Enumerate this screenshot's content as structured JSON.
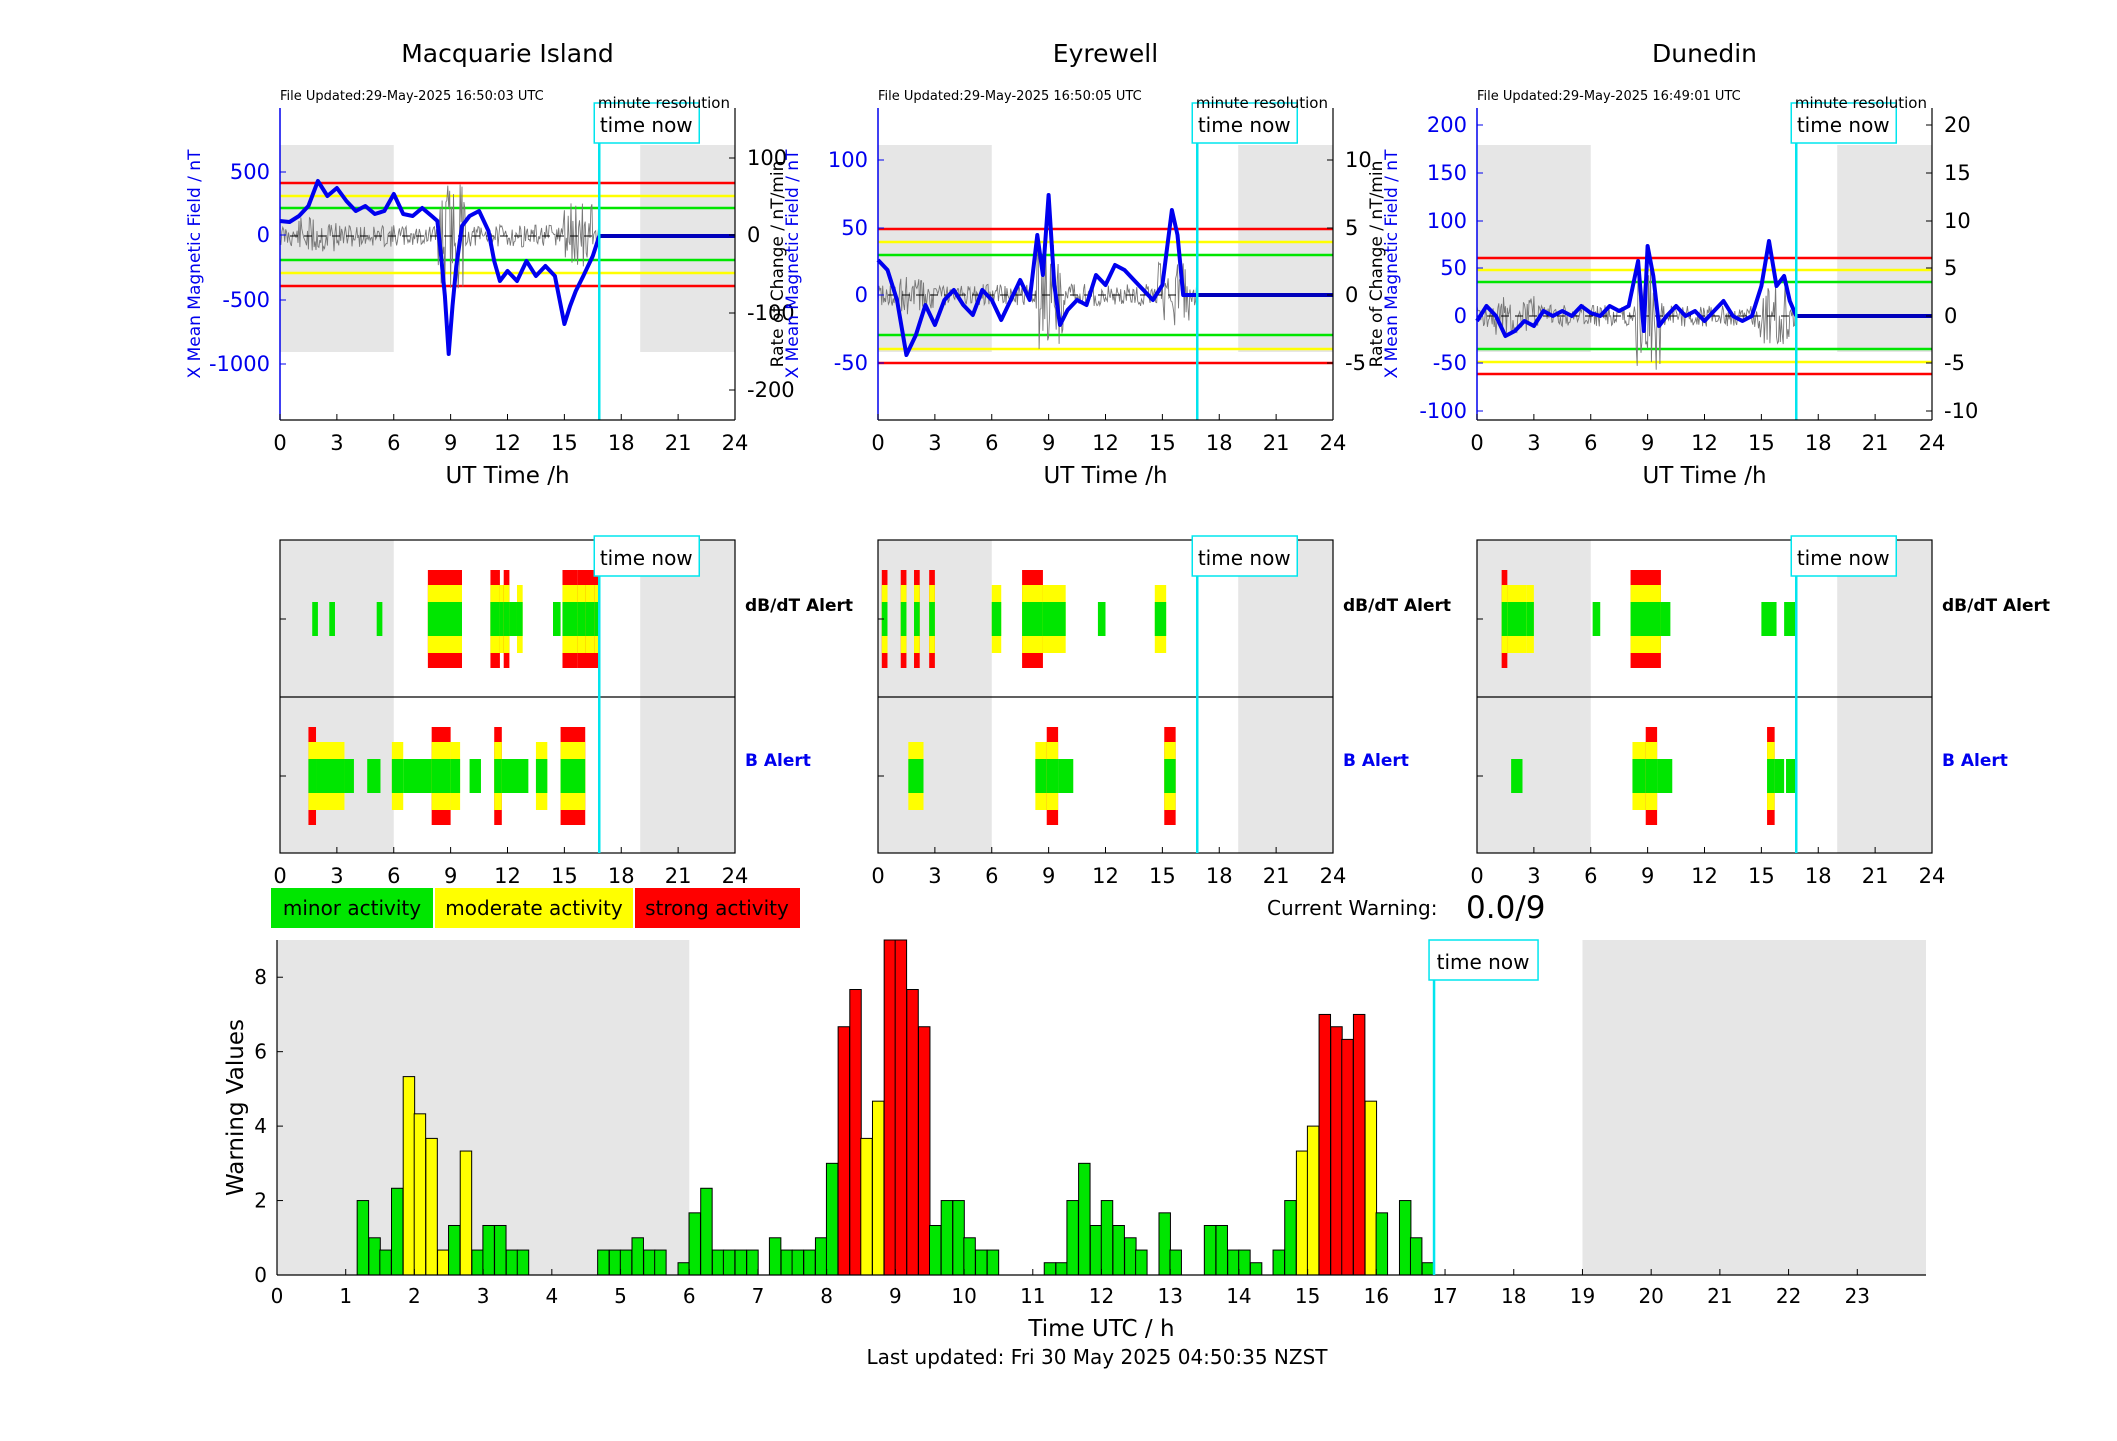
{
  "colors": {
    "minor": "#00e600",
    "moderate": "#ffff00",
    "strong": "#ff0000",
    "field": "#0000ee",
    "time_now": "#00e5ee",
    "night": "#e6e6e6"
  },
  "stations": [
    {
      "name": "Macquarie Island",
      "file_updated": "File Updated:29-May-2025 16:50:03 UTC",
      "resolution": "minute resolution",
      "left_axis_label": "X Mean Magnetic Field / nT",
      "right_axis_label": "",
      "x_label": "UT Time /h",
      "left_ticks": [
        "500",
        "0",
        "-500",
        "-1000"
      ],
      "right_ticks": [
        "100",
        "0",
        "-100",
        "-200"
      ]
    },
    {
      "name": "Eyrewell",
      "file_updated": "File Updated:29-May-2025 16:50:05 UTC",
      "resolution": "minute resolution",
      "left_axis_label": "X Mean Magnetic Field / nT",
      "right_axis_label": "Rate of Change / nT/min",
      "x_label": "UT Time /h",
      "left_ticks": [
        "100",
        "50",
        "0",
        "-50"
      ],
      "right_ticks": [
        "10",
        "5",
        "0",
        "-5"
      ]
    },
    {
      "name": "Dunedin",
      "file_updated": "File Updated:29-May-2025 16:49:01 UTC",
      "resolution": "minute resolution",
      "left_axis_label": "X Mean Magnetic Field / nT",
      "right_axis_label": "Rate of Change / nT/min",
      "x_label": "UT Time /h",
      "left_ticks": [
        "200",
        "150",
        "100",
        "50",
        "0",
        "-50",
        "-100"
      ],
      "right_ticks": [
        "20",
        "15",
        "10",
        "5",
        "0",
        "-5",
        "-10"
      ]
    }
  ],
  "time_now_label": "time now",
  "alerts": {
    "dbdt_label": "dB/dT Alert",
    "b_label": "B Alert"
  },
  "hour_ticks": [
    "0",
    "3",
    "6",
    "9",
    "12",
    "15",
    "18",
    "21",
    "24"
  ],
  "legend": {
    "minor": "minor activity",
    "moderate": "moderate activity",
    "strong": "strong activity"
  },
  "current_warning": {
    "label": "Current Warning:",
    "value": "0.0/9"
  },
  "chart_data": {
    "type": "bar",
    "xlabel": "Time UTC / h",
    "ylabel": "Warning Values",
    "xlim": [
      0,
      24
    ],
    "ylim": [
      0,
      9
    ],
    "x_ticks": [
      "0",
      "1",
      "2",
      "3",
      "4",
      "5",
      "6",
      "7",
      "8",
      "9",
      "10",
      "11",
      "12",
      "13",
      "14",
      "15",
      "16",
      "17",
      "18",
      "19",
      "20",
      "21",
      "22",
      "23"
    ],
    "y_ticks": [
      "0",
      "2",
      "4",
      "6",
      "8"
    ],
    "night_shading": [
      [
        0,
        6
      ],
      [
        19,
        24
      ]
    ],
    "time_now_h": 16.84,
    "bin_width_h": 0.1667,
    "bars": [
      {
        "x": 1.25,
        "v": 2.0,
        "level": "minor"
      },
      {
        "x": 1.42,
        "v": 1.0,
        "level": "minor"
      },
      {
        "x": 1.58,
        "v": 0.67,
        "level": "minor"
      },
      {
        "x": 1.75,
        "v": 2.33,
        "level": "minor"
      },
      {
        "x": 1.92,
        "v": 5.33,
        "level": "moderate"
      },
      {
        "x": 2.08,
        "v": 4.33,
        "level": "moderate"
      },
      {
        "x": 2.25,
        "v": 3.67,
        "level": "moderate"
      },
      {
        "x": 2.42,
        "v": 0.67,
        "level": "moderate"
      },
      {
        "x": 2.58,
        "v": 1.33,
        "level": "minor"
      },
      {
        "x": 2.75,
        "v": 3.33,
        "level": "moderate"
      },
      {
        "x": 2.92,
        "v": 0.67,
        "level": "minor"
      },
      {
        "x": 3.08,
        "v": 1.33,
        "level": "minor"
      },
      {
        "x": 3.25,
        "v": 1.33,
        "level": "minor"
      },
      {
        "x": 3.42,
        "v": 0.67,
        "level": "minor"
      },
      {
        "x": 3.58,
        "v": 0.67,
        "level": "minor"
      },
      {
        "x": 4.75,
        "v": 0.67,
        "level": "minor"
      },
      {
        "x": 4.92,
        "v": 0.67,
        "level": "minor"
      },
      {
        "x": 5.08,
        "v": 0.67,
        "level": "minor"
      },
      {
        "x": 5.25,
        "v": 1.0,
        "level": "minor"
      },
      {
        "x": 5.42,
        "v": 0.67,
        "level": "minor"
      },
      {
        "x": 5.58,
        "v": 0.67,
        "level": "minor"
      },
      {
        "x": 5.92,
        "v": 0.33,
        "level": "minor"
      },
      {
        "x": 6.08,
        "v": 1.67,
        "level": "minor"
      },
      {
        "x": 6.25,
        "v": 2.33,
        "level": "minor"
      },
      {
        "x": 6.42,
        "v": 0.67,
        "level": "minor"
      },
      {
        "x": 6.58,
        "v": 0.67,
        "level": "minor"
      },
      {
        "x": 6.75,
        "v": 0.67,
        "level": "minor"
      },
      {
        "x": 6.92,
        "v": 0.67,
        "level": "minor"
      },
      {
        "x": 7.25,
        "v": 1.0,
        "level": "minor"
      },
      {
        "x": 7.42,
        "v": 0.67,
        "level": "minor"
      },
      {
        "x": 7.58,
        "v": 0.67,
        "level": "minor"
      },
      {
        "x": 7.75,
        "v": 0.67,
        "level": "minor"
      },
      {
        "x": 7.92,
        "v": 1.0,
        "level": "minor"
      },
      {
        "x": 8.08,
        "v": 3.0,
        "level": "minor"
      },
      {
        "x": 8.25,
        "v": 6.67,
        "level": "strong"
      },
      {
        "x": 8.42,
        "v": 7.67,
        "level": "strong"
      },
      {
        "x": 8.58,
        "v": 3.67,
        "level": "moderate"
      },
      {
        "x": 8.75,
        "v": 4.67,
        "level": "moderate"
      },
      {
        "x": 8.92,
        "v": 9.0,
        "level": "strong"
      },
      {
        "x": 9.08,
        "v": 9.0,
        "level": "strong"
      },
      {
        "x": 9.25,
        "v": 7.67,
        "level": "strong"
      },
      {
        "x": 9.42,
        "v": 6.67,
        "level": "strong"
      },
      {
        "x": 9.58,
        "v": 1.33,
        "level": "minor"
      },
      {
        "x": 9.75,
        "v": 2.0,
        "level": "minor"
      },
      {
        "x": 9.92,
        "v": 2.0,
        "level": "minor"
      },
      {
        "x": 10.08,
        "v": 1.0,
        "level": "minor"
      },
      {
        "x": 10.25,
        "v": 0.67,
        "level": "minor"
      },
      {
        "x": 10.42,
        "v": 0.67,
        "level": "minor"
      },
      {
        "x": 11.25,
        "v": 0.33,
        "level": "minor"
      },
      {
        "x": 11.42,
        "v": 0.33,
        "level": "minor"
      },
      {
        "x": 11.58,
        "v": 2.0,
        "level": "minor"
      },
      {
        "x": 11.75,
        "v": 3.0,
        "level": "minor"
      },
      {
        "x": 11.92,
        "v": 1.33,
        "level": "minor"
      },
      {
        "x": 12.08,
        "v": 2.0,
        "level": "minor"
      },
      {
        "x": 12.25,
        "v": 1.33,
        "level": "minor"
      },
      {
        "x": 12.42,
        "v": 1.0,
        "level": "minor"
      },
      {
        "x": 12.58,
        "v": 0.67,
        "level": "minor"
      },
      {
        "x": 12.92,
        "v": 1.67,
        "level": "minor"
      },
      {
        "x": 13.08,
        "v": 0.67,
        "level": "minor"
      },
      {
        "x": 13.58,
        "v": 1.33,
        "level": "minor"
      },
      {
        "x": 13.75,
        "v": 1.33,
        "level": "minor"
      },
      {
        "x": 13.92,
        "v": 0.67,
        "level": "minor"
      },
      {
        "x": 14.08,
        "v": 0.67,
        "level": "minor"
      },
      {
        "x": 14.25,
        "v": 0.33,
        "level": "minor"
      },
      {
        "x": 14.58,
        "v": 0.67,
        "level": "minor"
      },
      {
        "x": 14.75,
        "v": 2.0,
        "level": "minor"
      },
      {
        "x": 14.92,
        "v": 3.33,
        "level": "moderate"
      },
      {
        "x": 15.08,
        "v": 4.0,
        "level": "moderate"
      },
      {
        "x": 15.25,
        "v": 7.0,
        "level": "strong"
      },
      {
        "x": 15.42,
        "v": 6.67,
        "level": "strong"
      },
      {
        "x": 15.58,
        "v": 6.33,
        "level": "strong"
      },
      {
        "x": 15.75,
        "v": 7.0,
        "level": "strong"
      },
      {
        "x": 15.92,
        "v": 4.67,
        "level": "moderate"
      },
      {
        "x": 16.08,
        "v": 1.67,
        "level": "minor"
      },
      {
        "x": 16.42,
        "v": 2.0,
        "level": "minor"
      },
      {
        "x": 16.58,
        "v": 1.0,
        "level": "minor"
      },
      {
        "x": 16.75,
        "v": 0.33,
        "level": "minor"
      }
    ]
  },
  "footer": {
    "last_updated": "Last updated: Fri 30 May 2025 04:50:35 NZST"
  }
}
